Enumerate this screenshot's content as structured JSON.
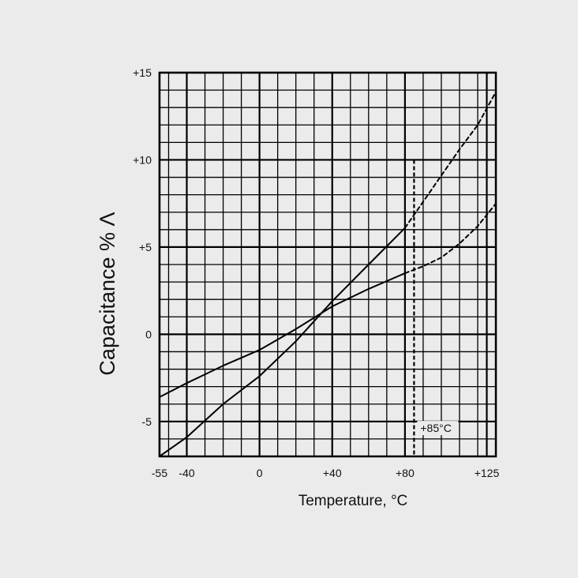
{
  "chart_data": {
    "type": "line",
    "xlabel": "Temperature, °C",
    "ylabel": "Capacitance % Λ",
    "xlim": [
      -55,
      130
    ],
    "ylim": [
      -7,
      15
    ],
    "x_tick_labels": [
      "-55",
      "-40",
      "0",
      "+40",
      "+80",
      "+125"
    ],
    "x_tick_values": [
      -55,
      -40,
      0,
      40,
      80,
      125
    ],
    "y_tick_labels": [
      "+15",
      "+10",
      "+5",
      "0",
      "-5"
    ],
    "y_tick_values": [
      15,
      10,
      5,
      0,
      -5
    ],
    "grid": true,
    "series": [
      {
        "style": "solid",
        "points": [
          [
            -55,
            -7.0
          ],
          [
            -40,
            -5.9
          ],
          [
            -20,
            -4.0
          ],
          [
            0,
            -2.4
          ],
          [
            20,
            -0.4
          ],
          [
            40,
            1.9
          ],
          [
            60,
            4.0
          ],
          [
            80,
            6.1
          ]
        ]
      },
      {
        "style": "dashed",
        "points": [
          [
            80,
            6.1
          ],
          [
            90,
            7.6
          ],
          [
            100,
            9.1
          ],
          [
            110,
            10.6
          ],
          [
            120,
            12.0
          ],
          [
            130,
            13.9
          ]
        ]
      },
      {
        "style": "solid",
        "points": [
          [
            -55,
            -3.6
          ],
          [
            -40,
            -2.8
          ],
          [
            -20,
            -1.8
          ],
          [
            0,
            -0.9
          ],
          [
            20,
            0.3
          ],
          [
            40,
            1.6
          ],
          [
            60,
            2.6
          ],
          [
            80,
            3.5
          ]
        ]
      },
      {
        "style": "dashed",
        "points": [
          [
            80,
            3.5
          ],
          [
            90,
            3.9
          ],
          [
            100,
            4.4
          ],
          [
            110,
            5.2
          ],
          [
            120,
            6.2
          ],
          [
            130,
            7.5
          ]
        ]
      }
    ],
    "annotations": [
      {
        "text": "+85°C",
        "x": 85,
        "y": -5.6,
        "style": "dashed-vertical-line",
        "line_from": -7,
        "line_to": 10
      }
    ]
  }
}
